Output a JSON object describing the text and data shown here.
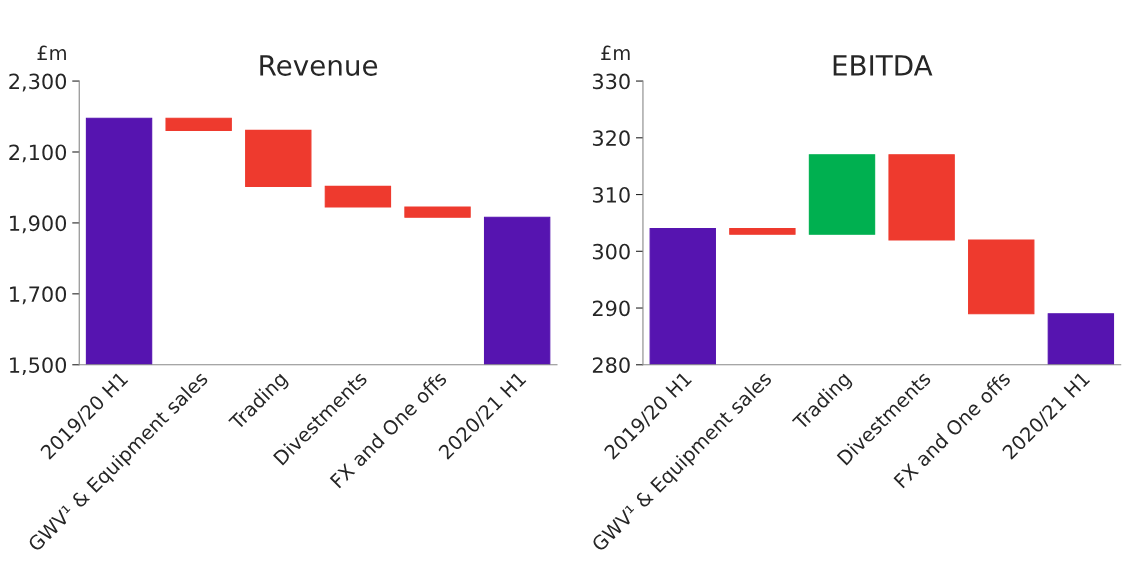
{
  "chart_data": [
    {
      "type": "bar",
      "title": "Revenue",
      "ylabel": "£m",
      "categories": [
        "2019/20 H1",
        "GWV¹ & Equipment sales",
        "Trading",
        "Divestments",
        "FX and One offs",
        "2020/21 H1"
      ],
      "values": [
        2195,
        -34,
        -158,
        -58,
        -29,
        1916
      ],
      "base": [
        null,
        2195,
        2161,
        2003,
        1945,
        null
      ],
      "colors": [
        "#5614b0",
        "#ee3a2e",
        "#ee3a2e",
        "#ee3a2e",
        "#ee3a2e",
        "#5614b0"
      ],
      "ylim": [
        1500,
        2300
      ],
      "yticks": [
        {
          "value": 1500,
          "label": "1,500"
        },
        {
          "value": 1700,
          "label": "1,700"
        },
        {
          "value": 1900,
          "label": "1,900"
        },
        {
          "value": 2100,
          "label": "2,100"
        },
        {
          "value": 2300,
          "label": "2,300"
        }
      ],
      "grid": false
    },
    {
      "type": "bar",
      "title": "EBITDA",
      "ylabel": "£m",
      "categories": [
        "2019/20 H1",
        "GWV¹ & Equipment sales",
        "Trading",
        "Divestments",
        "FX and One offs",
        "2020/21 H1"
      ],
      "values": [
        304,
        -1,
        14,
        -15,
        -13,
        289
      ],
      "base": [
        null,
        304,
        303,
        317,
        302,
        null
      ],
      "colors": [
        "#5614b0",
        "#ee3a2e",
        "#00b050",
        "#ee3a2e",
        "#ee3a2e",
        "#5614b0"
      ],
      "ylim": [
        280,
        330
      ],
      "yticks": [
        280,
        290,
        300,
        310,
        320,
        330
      ],
      "grid": false
    }
  ]
}
